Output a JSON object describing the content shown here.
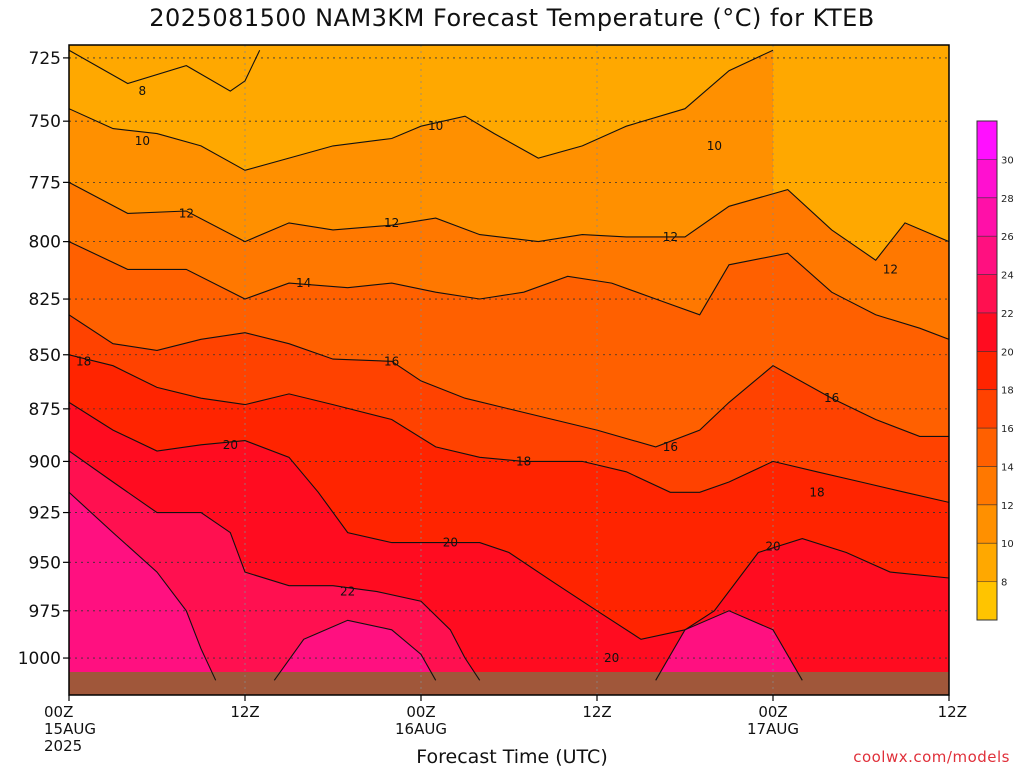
{
  "chart_data": {
    "type": "heatmap",
    "title": "2025081500 NAM3KM Forecast Temperature (°C) for KTEB",
    "xlabel": "Forecast Time (UTC)",
    "ylabel": "",
    "x_ticks": [
      {
        "lines": [
          "00Z",
          "15AUG",
          "2025"
        ]
      },
      {
        "lines": [
          "12Z"
        ]
      },
      {
        "lines": [
          "00Z",
          "16AUG"
        ]
      },
      {
        "lines": [
          "12Z"
        ]
      },
      {
        "lines": [
          "00Z",
          "17AUG"
        ]
      },
      {
        "lines": [
          "12Z"
        ]
      }
    ],
    "xlim_hours": [
      0,
      60
    ],
    "y_ticks": [
      725,
      750,
      775,
      800,
      825,
      850,
      875,
      900,
      925,
      950,
      975,
      1000
    ],
    "ylim_hPa": [
      720,
      1020
    ],
    "y_scale": "log-pressure",
    "grid": true,
    "colorbar": {
      "levels": [
        8,
        10,
        12,
        14,
        16,
        18,
        20,
        22,
        24,
        26,
        28,
        30
      ],
      "colors": [
        "#ffc400",
        "#ffa800",
        "#ff9000",
        "#ff7800",
        "#ff6000",
        "#ff4200",
        "#ff2400",
        "#ff0c20",
        "#ff1050",
        "#ff1080",
        "#ff10a8",
        "#ff10d0",
        "#ff10ff"
      ]
    },
    "series": [
      {
        "value": 8,
        "points": [
          [
            0,
            722
          ],
          [
            4,
            735
          ],
          [
            8,
            728
          ],
          [
            11,
            738
          ],
          [
            12,
            734
          ],
          [
            13,
            722
          ]
        ]
      },
      {
        "value": 10,
        "points": [
          [
            0,
            745
          ],
          [
            3,
            753
          ],
          [
            6,
            755
          ],
          [
            9,
            760
          ],
          [
            12,
            770
          ],
          [
            15,
            765
          ],
          [
            18,
            760
          ],
          [
            22,
            757
          ],
          [
            24,
            752
          ],
          [
            27,
            748
          ],
          [
            29,
            755
          ],
          [
            32,
            765
          ],
          [
            35,
            760
          ],
          [
            38,
            752
          ],
          [
            42,
            745
          ],
          [
            45,
            730
          ],
          [
            48,
            722
          ]
        ]
      },
      {
        "value": 12,
        "points": [
          [
            0,
            775
          ],
          [
            4,
            788
          ],
          [
            8,
            787
          ],
          [
            12,
            800
          ],
          [
            15,
            792
          ],
          [
            18,
            795
          ],
          [
            22,
            793
          ],
          [
            25,
            790
          ],
          [
            28,
            797
          ],
          [
            32,
            800
          ],
          [
            35,
            797
          ],
          [
            38,
            798
          ],
          [
            42,
            798
          ],
          [
            45,
            785
          ],
          [
            49,
            778
          ],
          [
            52,
            795
          ],
          [
            55,
            808
          ],
          [
            57,
            792
          ],
          [
            60,
            800
          ]
        ]
      },
      {
        "value": 14,
        "points": [
          [
            0,
            800
          ],
          [
            4,
            812
          ],
          [
            8,
            812
          ],
          [
            12,
            825
          ],
          [
            15,
            818
          ],
          [
            19,
            820
          ],
          [
            22,
            818
          ],
          [
            25,
            822
          ],
          [
            28,
            825
          ],
          [
            31,
            822
          ],
          [
            34,
            815
          ],
          [
            37,
            818
          ],
          [
            40,
            825
          ],
          [
            43,
            832
          ],
          [
            45,
            810
          ],
          [
            49,
            805
          ],
          [
            52,
            822
          ],
          [
            55,
            832
          ],
          [
            58,
            838
          ],
          [
            60,
            843
          ]
        ]
      },
      {
        "value": 16,
        "points": [
          [
            0,
            832
          ],
          [
            3,
            845
          ],
          [
            6,
            848
          ],
          [
            9,
            843
          ],
          [
            12,
            840
          ],
          [
            15,
            845
          ],
          [
            18,
            852
          ],
          [
            22,
            853
          ],
          [
            24,
            862
          ],
          [
            27,
            870
          ],
          [
            30,
            875
          ],
          [
            33,
            880
          ],
          [
            36,
            885
          ],
          [
            40,
            893
          ],
          [
            43,
            885
          ],
          [
            45,
            872
          ],
          [
            48,
            855
          ],
          [
            52,
            870
          ],
          [
            55,
            880
          ],
          [
            58,
            888
          ],
          [
            60,
            888
          ]
        ]
      },
      {
        "value": 18,
        "points": [
          [
            0,
            850
          ],
          [
            3,
            855
          ],
          [
            6,
            865
          ],
          [
            9,
            870
          ],
          [
            12,
            873
          ],
          [
            15,
            868
          ],
          [
            18,
            873
          ],
          [
            22,
            880
          ],
          [
            25,
            893
          ],
          [
            28,
            898
          ],
          [
            31,
            900
          ],
          [
            35,
            900
          ],
          [
            38,
            905
          ],
          [
            41,
            915
          ],
          [
            43,
            915
          ],
          [
            45,
            910
          ],
          [
            48,
            900
          ],
          [
            51,
            905
          ],
          [
            54,
            910
          ],
          [
            57,
            915
          ],
          [
            60,
            920
          ]
        ]
      },
      {
        "value": 20,
        "points": [
          [
            0,
            872
          ],
          [
            3,
            885
          ],
          [
            6,
            895
          ],
          [
            9,
            892
          ],
          [
            12,
            890
          ],
          [
            15,
            898
          ],
          [
            17,
            915
          ],
          [
            19,
            935
          ],
          [
            22,
            940
          ],
          [
            25,
            940
          ],
          [
            28,
            940
          ],
          [
            30,
            945
          ],
          [
            33,
            960
          ],
          [
            36,
            975
          ],
          [
            39,
            990
          ],
          [
            42,
            985
          ],
          [
            44,
            975
          ],
          [
            47,
            945
          ],
          [
            50,
            938
          ],
          [
            53,
            945
          ],
          [
            56,
            955
          ],
          [
            60,
            958
          ]
        ]
      },
      {
        "value": 22,
        "points": [
          [
            0,
            895
          ],
          [
            3,
            910
          ],
          [
            6,
            925
          ],
          [
            9,
            925
          ],
          [
            11,
            935
          ],
          [
            12,
            955
          ],
          [
            15,
            962
          ],
          [
            18,
            962
          ],
          [
            21,
            965
          ],
          [
            24,
            970
          ],
          [
            26,
            985
          ],
          [
            27,
            1000
          ],
          [
            28,
            1012
          ]
        ]
      },
      {
        "value": 24,
        "points": [
          [
            0,
            915
          ],
          [
            3,
            935
          ],
          [
            6,
            955
          ],
          [
            8,
            975
          ],
          [
            9,
            995
          ],
          [
            10,
            1012
          ]
        ]
      },
      {
        "value": 24,
        "points": [
          [
            14,
            1012
          ],
          [
            16,
            990
          ],
          [
            19,
            980
          ],
          [
            22,
            985
          ],
          [
            24,
            998
          ],
          [
            25,
            1012
          ]
        ]
      },
      {
        "value": 24,
        "points": [
          [
            40,
            1012
          ],
          [
            42,
            985
          ],
          [
            45,
            975
          ],
          [
            48,
            985
          ],
          [
            50,
            1012
          ]
        ]
      }
    ],
    "contour_labels": [
      {
        "text": "8",
        "x": 5,
        "p": 738
      },
      {
        "text": "10",
        "x": 5,
        "p": 758
      },
      {
        "text": "10",
        "x": 25,
        "p": 752
      },
      {
        "text": "10",
        "x": 44,
        "p": 760
      },
      {
        "text": "12",
        "x": 8,
        "p": 788
      },
      {
        "text": "12",
        "x": 22,
        "p": 792
      },
      {
        "text": "12",
        "x": 41,
        "p": 798
      },
      {
        "text": "12",
        "x": 56,
        "p": 812
      },
      {
        "text": "14",
        "x": 16,
        "p": 818
      },
      {
        "text": "16",
        "x": 22,
        "p": 853
      },
      {
        "text": "16",
        "x": 52,
        "p": 870
      },
      {
        "text": "16",
        "x": 41,
        "p": 893
      },
      {
        "text": "18",
        "x": 1,
        "p": 853
      },
      {
        "text": "18",
        "x": 31,
        "p": 900
      },
      {
        "text": "18",
        "x": 51,
        "p": 915
      },
      {
        "text": "20",
        "x": 11,
        "p": 892
      },
      {
        "text": "20",
        "x": 26,
        "p": 940
      },
      {
        "text": "20",
        "x": 48,
        "p": 942
      },
      {
        "text": "20",
        "x": 37,
        "p": 1000
      },
      {
        "text": "22",
        "x": 19,
        "p": 965
      }
    ]
  },
  "credit": "coolwx.com/models"
}
